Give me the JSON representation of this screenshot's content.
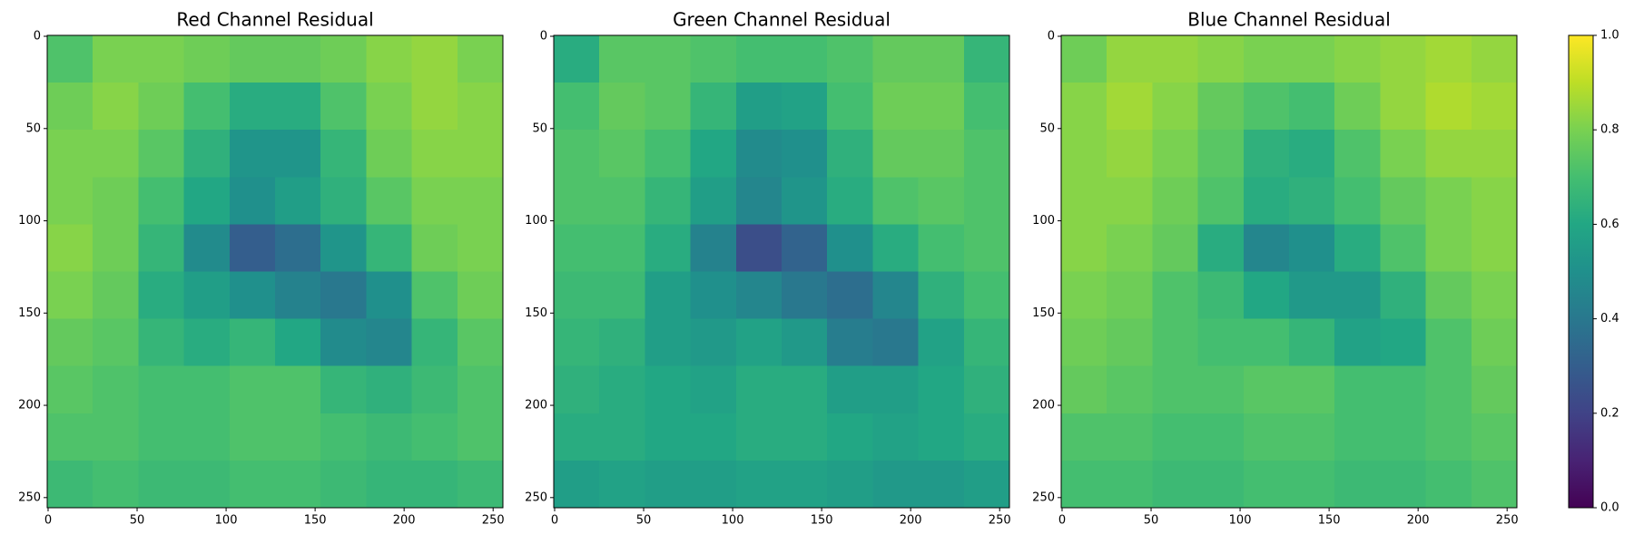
{
  "chart_data": [
    {
      "type": "heatmap",
      "title": "Red Channel Residual",
      "colormap": "viridis",
      "clim": [
        0,
        1
      ],
      "xlim": [
        -0.5,
        255.5
      ],
      "ylim": [
        255.5,
        -0.5
      ],
      "xticks": [
        0,
        50,
        100,
        150,
        200,
        250
      ],
      "yticks": [
        0,
        50,
        100,
        150,
        200,
        250
      ],
      "values": [
        [
          0.72,
          0.8,
          0.8,
          0.78,
          0.76,
          0.76,
          0.78,
          0.82,
          0.84,
          0.8
        ],
        [
          0.78,
          0.82,
          0.78,
          0.7,
          0.62,
          0.62,
          0.72,
          0.8,
          0.84,
          0.82
        ],
        [
          0.8,
          0.8,
          0.74,
          0.64,
          0.52,
          0.52,
          0.66,
          0.78,
          0.82,
          0.82
        ],
        [
          0.8,
          0.78,
          0.7,
          0.6,
          0.5,
          0.56,
          0.64,
          0.74,
          0.8,
          0.8
        ],
        [
          0.82,
          0.78,
          0.66,
          0.48,
          0.3,
          0.36,
          0.52,
          0.66,
          0.78,
          0.8
        ],
        [
          0.8,
          0.76,
          0.62,
          0.56,
          0.5,
          0.44,
          0.4,
          0.5,
          0.72,
          0.78
        ],
        [
          0.76,
          0.74,
          0.66,
          0.62,
          0.66,
          0.6,
          0.48,
          0.46,
          0.66,
          0.74
        ],
        [
          0.74,
          0.72,
          0.7,
          0.7,
          0.72,
          0.72,
          0.66,
          0.64,
          0.68,
          0.72
        ],
        [
          0.72,
          0.72,
          0.7,
          0.7,
          0.72,
          0.72,
          0.7,
          0.68,
          0.7,
          0.72
        ],
        [
          0.68,
          0.7,
          0.68,
          0.68,
          0.7,
          0.7,
          0.68,
          0.66,
          0.66,
          0.68
        ]
      ]
    },
    {
      "type": "heatmap",
      "title": "Green Channel Residual",
      "colormap": "viridis",
      "clim": [
        0,
        1
      ],
      "xlim": [
        -0.5,
        255.5
      ],
      "ylim": [
        255.5,
        -0.5
      ],
      "xticks": [
        0,
        50,
        100,
        150,
        200,
        250
      ],
      "yticks": [
        0,
        50,
        100,
        150,
        200,
        250
      ],
      "values": [
        [
          0.62,
          0.74,
          0.74,
          0.72,
          0.7,
          0.7,
          0.72,
          0.76,
          0.76,
          0.66
        ],
        [
          0.7,
          0.76,
          0.74,
          0.66,
          0.56,
          0.58,
          0.7,
          0.78,
          0.78,
          0.7
        ],
        [
          0.72,
          0.74,
          0.7,
          0.6,
          0.48,
          0.5,
          0.64,
          0.76,
          0.76,
          0.72
        ],
        [
          0.72,
          0.72,
          0.66,
          0.56,
          0.46,
          0.52,
          0.62,
          0.72,
          0.74,
          0.72
        ],
        [
          0.7,
          0.7,
          0.62,
          0.44,
          0.24,
          0.32,
          0.5,
          0.62,
          0.7,
          0.72
        ],
        [
          0.68,
          0.68,
          0.56,
          0.5,
          0.46,
          0.4,
          0.36,
          0.46,
          0.64,
          0.7
        ],
        [
          0.66,
          0.64,
          0.56,
          0.54,
          0.58,
          0.54,
          0.42,
          0.4,
          0.58,
          0.66
        ],
        [
          0.64,
          0.62,
          0.6,
          0.58,
          0.62,
          0.62,
          0.56,
          0.56,
          0.6,
          0.64
        ],
        [
          0.62,
          0.62,
          0.6,
          0.6,
          0.62,
          0.62,
          0.6,
          0.58,
          0.6,
          0.62
        ],
        [
          0.56,
          0.58,
          0.56,
          0.56,
          0.58,
          0.58,
          0.56,
          0.54,
          0.54,
          0.56
        ]
      ]
    },
    {
      "type": "heatmap",
      "title": "Blue Channel Residual",
      "colormap": "viridis",
      "clim": [
        0,
        1
      ],
      "xlim": [
        -0.5,
        255.5
      ],
      "ylim": [
        255.5,
        -0.5
      ],
      "xticks": [
        0,
        50,
        100,
        150,
        200,
        250
      ],
      "yticks": [
        0,
        50,
        100,
        150,
        200,
        250
      ],
      "values": [
        [
          0.78,
          0.84,
          0.84,
          0.82,
          0.8,
          0.8,
          0.82,
          0.84,
          0.86,
          0.84
        ],
        [
          0.82,
          0.86,
          0.82,
          0.76,
          0.72,
          0.7,
          0.78,
          0.84,
          0.88,
          0.86
        ],
        [
          0.82,
          0.84,
          0.8,
          0.74,
          0.64,
          0.62,
          0.72,
          0.8,
          0.84,
          0.84
        ],
        [
          0.82,
          0.82,
          0.78,
          0.72,
          0.62,
          0.64,
          0.7,
          0.76,
          0.8,
          0.82
        ],
        [
          0.82,
          0.8,
          0.76,
          0.62,
          0.46,
          0.5,
          0.62,
          0.72,
          0.8,
          0.82
        ],
        [
          0.8,
          0.78,
          0.72,
          0.68,
          0.6,
          0.54,
          0.54,
          0.64,
          0.76,
          0.8
        ],
        [
          0.78,
          0.76,
          0.72,
          0.7,
          0.7,
          0.66,
          0.58,
          0.6,
          0.72,
          0.78
        ],
        [
          0.76,
          0.74,
          0.72,
          0.72,
          0.74,
          0.74,
          0.7,
          0.7,
          0.72,
          0.76
        ],
        [
          0.72,
          0.72,
          0.7,
          0.7,
          0.72,
          0.72,
          0.7,
          0.7,
          0.72,
          0.74
        ],
        [
          0.7,
          0.7,
          0.68,
          0.68,
          0.7,
          0.7,
          0.68,
          0.68,
          0.7,
          0.72
        ]
      ]
    }
  ],
  "colorbar": {
    "clim": [
      0,
      1
    ],
    "ticks": [
      {
        "value": 0,
        "label": "0.0"
      },
      {
        "value": 0.2,
        "label": "0.2"
      },
      {
        "value": 0.4,
        "label": "0.4"
      },
      {
        "value": 0.6,
        "label": "0.6"
      },
      {
        "value": 0.8,
        "label": "0.8"
      },
      {
        "value": 1,
        "label": "1.0"
      }
    ]
  }
}
